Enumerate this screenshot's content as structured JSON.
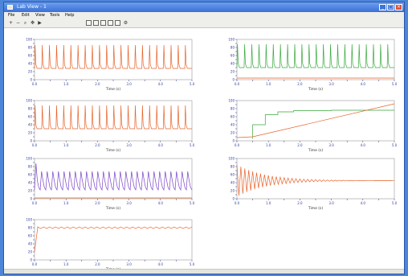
{
  "window": {
    "title": "Lab View - 1",
    "icons": {
      "app": "plot-window-icon",
      "minimize": "minimize-icon",
      "maximize": "maximize-icon",
      "close": "close-icon"
    }
  },
  "menu": [
    "File",
    "Edit",
    "View",
    "Tools",
    "Help"
  ],
  "toolbar": {
    "buttons": [
      "zoom-in-icon",
      "zoom-out-icon",
      "zoom-box-icon",
      "pan-icon",
      "play-icon",
      "grid-icon",
      "legend-icon",
      "axis-icon",
      "export-icon",
      "print-icon",
      "settings-icon"
    ]
  },
  "colors": {
    "orange": "#e8632a",
    "green": "#3aa93e",
    "purple": "#7a44c9",
    "tick": "#2f3a9a",
    "frame": "#9a9a9a"
  },
  "chart_data": [
    {
      "type": "line",
      "title": "",
      "xlabel": "Time (s)",
      "ylabel": "",
      "xlim": [
        0,
        5
      ],
      "ylim": [
        0,
        100
      ],
      "x_ticks": [
        "0.0",
        "0.5",
        "1.0",
        "1.5",
        "2.0",
        "2.5",
        "3.0",
        "3.5",
        "4.0",
        "4.5",
        "5.0"
      ],
      "y_ticks": [
        "0",
        "10",
        "20",
        "30",
        "40",
        "50",
        "60",
        "70",
        "80",
        "90",
        "100"
      ],
      "series": [
        {
          "color": "orange",
          "pattern": "spikes",
          "cycles": 22,
          "base": 28,
          "peak": 86
        }
      ]
    },
    {
      "type": "line",
      "title": "",
      "xlabel": "Time (s)",
      "ylabel": "",
      "xlim": [
        0,
        5
      ],
      "ylim": [
        0,
        100
      ],
      "x_ticks": [
        "0.0",
        "0.5",
        "1.0",
        "1.5",
        "2.0",
        "2.5",
        "3.0",
        "3.5",
        "4.0",
        "4.5",
        "5.0"
      ],
      "y_ticks": [
        "0",
        "10",
        "20",
        "30",
        "40",
        "50",
        "60",
        "70",
        "80",
        "90",
        "100"
      ],
      "series": [
        {
          "color": "orange",
          "pattern": "flat",
          "level": 4
        },
        {
          "color": "green",
          "pattern": "spikes",
          "cycles": 22,
          "base": 30,
          "peak": 88
        }
      ]
    },
    {
      "type": "line",
      "title": "",
      "xlabel": "Time (s)",
      "ylabel": "",
      "xlim": [
        0,
        5
      ],
      "ylim": [
        0,
        100
      ],
      "x_ticks": [
        "0.0",
        "0.5",
        "1.0",
        "1.5",
        "2.0",
        "2.5",
        "3.0",
        "3.5",
        "4.0",
        "4.5",
        "5.0"
      ],
      "y_ticks": [
        "0",
        "10",
        "20",
        "30",
        "40",
        "50",
        "60",
        "70",
        "80",
        "90",
        "100"
      ],
      "series": [
        {
          "color": "orange",
          "pattern": "spikes",
          "cycles": 22,
          "base": 30,
          "peak": 88
        }
      ]
    },
    {
      "type": "line",
      "title": "",
      "xlabel": "Time (s)",
      "ylabel": "",
      "xlim": [
        0,
        5
      ],
      "ylim": [
        0,
        100
      ],
      "x_ticks": [
        "0.0",
        "0.5",
        "1.0",
        "1.5",
        "2.0",
        "2.5",
        "3.0",
        "3.5",
        "4.0",
        "4.5",
        "5.0"
      ],
      "y_ticks": [
        "0",
        "10",
        "20",
        "30",
        "40",
        "50",
        "60",
        "70",
        "80",
        "90",
        "100"
      ],
      "series": [
        {
          "color": "green",
          "pattern": "steps",
          "points": [
            [
              0.5,
              5
            ],
            [
              0.5,
              40
            ],
            [
              0.9,
              40
            ],
            [
              0.9,
              65
            ],
            [
              1.3,
              65
            ],
            [
              1.3,
              72
            ],
            [
              1.8,
              72
            ],
            [
              1.8,
              75
            ],
            [
              3.0,
              75
            ],
            [
              3.0,
              76
            ],
            [
              5.0,
              76
            ]
          ]
        },
        {
          "color": "orange",
          "pattern": "ramp",
          "points": [
            [
              0.0,
              8
            ],
            [
              0.5,
              10
            ],
            [
              5.0,
              92
            ]
          ]
        }
      ]
    },
    {
      "type": "line",
      "title": "",
      "xlabel": "Time (s)",
      "ylabel": "",
      "xlim": [
        0,
        5
      ],
      "ylim": [
        0,
        100
      ],
      "x_ticks": [
        "0.0",
        "0.5",
        "1.0",
        "1.5",
        "2.0",
        "2.5",
        "3.0",
        "3.5",
        "4.0",
        "4.5",
        "5.0"
      ],
      "y_ticks": [
        "0",
        "10",
        "20",
        "30",
        "40",
        "50",
        "60",
        "70",
        "80",
        "90",
        "100"
      ],
      "series": [
        {
          "color": "purple",
          "pattern": "noise",
          "cycles": 28,
          "base": 22,
          "peak": 68,
          "start_peak": 88
        },
        {
          "color": "orange",
          "pattern": "flat",
          "level": 2
        }
      ]
    },
    {
      "type": "line",
      "title": "",
      "xlabel": "Time (s)",
      "ylabel": "",
      "xlim": [
        0,
        5
      ],
      "ylim": [
        0,
        100
      ],
      "x_ticks": [
        "0.0",
        "0.5",
        "1.0",
        "1.5",
        "2.0",
        "2.5",
        "3.0",
        "3.5",
        "4.0",
        "4.5",
        "5.0"
      ],
      "y_ticks": [
        "0",
        "10",
        "20",
        "30",
        "40",
        "50",
        "60",
        "70",
        "80",
        "90",
        "100"
      ],
      "series": [
        {
          "color": "orange",
          "pattern": "damped",
          "cycles": 40,
          "final": 45,
          "initial_amp": 40
        }
      ]
    },
    {
      "type": "line",
      "title": "",
      "xlabel": "Time (s)",
      "ylabel": "",
      "xlim": [
        0,
        5
      ],
      "ylim": [
        0,
        100
      ],
      "x_ticks": [
        "0.0",
        "0.5",
        "1.0",
        "1.5",
        "2.0",
        "2.5",
        "3.0",
        "3.5",
        "4.0",
        "4.5",
        "5.0"
      ],
      "y_ticks": [
        "0",
        "10",
        "20",
        "30",
        "40",
        "50",
        "60",
        "70",
        "80",
        "90",
        "100"
      ],
      "series": [
        {
          "color": "orange",
          "pattern": "rise-ripple",
          "cycles": 26,
          "start": 20,
          "level": 80
        }
      ]
    }
  ]
}
